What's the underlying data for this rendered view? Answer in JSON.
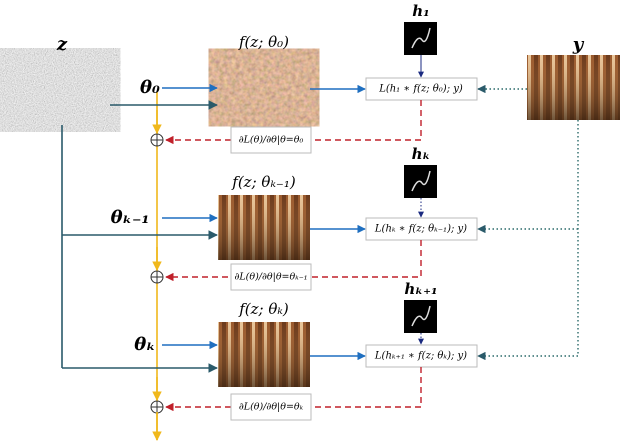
{
  "inputs": {
    "z": "z",
    "y": "y"
  },
  "stages": [
    {
      "param": "θ₀",
      "output": "f(z; θ₀)",
      "kernel": "h₁",
      "loss": "L(h₁ ∗ f(z; θ₀); y)",
      "gradient": "∂L(θ)/∂θ|θ=θ₀"
    },
    {
      "param": "θₖ₋₁",
      "output": "f(z; θₖ₋₁)",
      "kernel": "hₖ",
      "loss": "L(hₖ ∗ f(z; θₖ₋₁); y)",
      "gradient": "∂L(θ)/∂θ|θ=θₖ₋₁"
    },
    {
      "param": "θₖ",
      "output": "f(z; θₖ)",
      "kernel": "hₖ₊₁",
      "loss": "L(hₖ₊₁ ∗ f(z; θₖ); y)",
      "gradient": "∂L(θ)/∂θ|θ=θₖ"
    }
  ]
}
